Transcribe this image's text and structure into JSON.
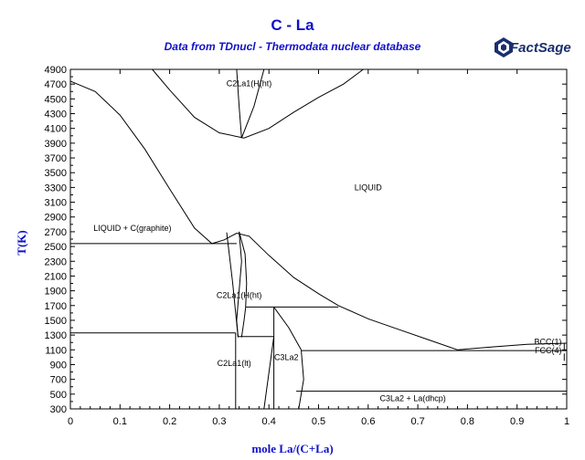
{
  "chart_data": {
    "type": "phase_diagram",
    "title": "C - La",
    "subtitle": "Data from TDnucl - Thermodata nuclear database",
    "logo": "FactSage",
    "xlabel": "mole La/(C+La)",
    "ylabel": "T(K)",
    "xlim": [
      0,
      1
    ],
    "ylim": [
      300,
      4900
    ],
    "x_ticks": [
      "0",
      "0.1",
      "0.2",
      "0.3",
      "0.4",
      "0.5",
      "0.6",
      "0.7",
      "0.8",
      "0.9",
      "1"
    ],
    "x_tick_values": [
      0,
      0.1,
      0.2,
      0.3,
      0.4,
      0.5,
      0.6,
      0.7,
      0.8,
      0.9,
      1
    ],
    "y_ticks": [
      300,
      500,
      700,
      900,
      1100,
      1300,
      1500,
      1700,
      1900,
      2100,
      2300,
      2500,
      2700,
      2900,
      3100,
      3300,
      3500,
      3700,
      3900,
      4100,
      4300,
      4500,
      4700,
      4900
    ],
    "grid": false,
    "regions": [
      {
        "label": "C2La1(H(ht)",
        "x": 0.36,
        "y": 4710
      },
      {
        "label": "LIQUID",
        "x": 0.6,
        "y": 3300
      },
      {
        "label": "LIQUID + C(graphite)",
        "x": 0.125,
        "y": 2750
      },
      {
        "label": "C2La1(H(ht)",
        "x": 0.34,
        "y": 1840
      },
      {
        "label": "C2La1(lt)",
        "x": 0.33,
        "y": 920
      },
      {
        "label": "C3La2",
        "x": 0.435,
        "y": 1000
      },
      {
        "label": "C3La2 + La(dhcp)",
        "x": 0.69,
        "y": 440
      },
      {
        "label": "BCC(1)",
        "x": 0.99,
        "y": 1210
      },
      {
        "label": "FCC(4)",
        "x": 0.99,
        "y": 1090
      }
    ],
    "series": [
      {
        "points": [
          [
            0,
            4740
          ],
          [
            0.05,
            4600
          ],
          [
            0.1,
            4280
          ],
          [
            0.15,
            3820
          ],
          [
            0.2,
            3280
          ],
          [
            0.25,
            2750
          ],
          [
            0.285,
            2540
          ],
          [
            0.31,
            2590
          ],
          [
            0.335,
            2680
          ]
        ]
      },
      {
        "points": [
          [
            0.335,
            2680
          ],
          [
            0.36,
            2640
          ],
          [
            0.4,
            2380
          ],
          [
            0.45,
            2080
          ],
          [
            0.5,
            1860
          ],
          [
            0.54,
            1700
          ],
          [
            0.6,
            1520
          ],
          [
            0.66,
            1380
          ],
          [
            0.72,
            1240
          ],
          [
            0.78,
            1100
          ],
          [
            0.85,
            1140
          ],
          [
            0.92,
            1175
          ],
          [
            1,
            1190
          ]
        ]
      },
      {
        "points": [
          [
            0.165,
            4900
          ],
          [
            0.2,
            4620
          ],
          [
            0.25,
            4250
          ],
          [
            0.3,
            4040
          ],
          [
            0.35,
            3970
          ],
          [
            0.4,
            4100
          ],
          [
            0.45,
            4320
          ],
          [
            0.5,
            4520
          ],
          [
            0.55,
            4700
          ],
          [
            0.59,
            4900
          ]
        ]
      },
      {
        "points": [
          [
            0.335,
            4900
          ],
          [
            0.34,
            4400
          ],
          [
            0.345,
            3970
          ]
        ]
      },
      {
        "points": [
          [
            0.345,
            3970
          ],
          [
            0.37,
            4400
          ],
          [
            0.39,
            4900
          ]
        ]
      },
      {
        "points": [
          [
            0.315,
            2690
          ],
          [
            0.32,
            2400
          ],
          [
            0.327,
            2000
          ],
          [
            0.333,
            1600
          ],
          [
            0.338,
            1270
          ]
        ]
      },
      {
        "points": [
          [
            0.34,
            2700
          ],
          [
            0.352,
            2400
          ],
          [
            0.355,
            2000
          ],
          [
            0.353,
            1670
          ],
          [
            0.35,
            1500
          ],
          [
            0.345,
            1270
          ]
        ]
      },
      {
        "points": [
          [
            0.34,
            2700
          ],
          [
            0.345,
            2300
          ],
          [
            0.34,
            1900
          ],
          [
            0.335,
            1500
          ],
          [
            0.338,
            1270
          ]
        ]
      },
      {
        "points": [
          [
            0,
            2540
          ],
          [
            0.335,
            2540
          ]
        ]
      },
      {
        "points": [
          [
            0.353,
            1680
          ],
          [
            0.54,
            1680
          ]
        ]
      },
      {
        "points": [
          [
            0,
            1330
          ],
          [
            0.333,
            1330
          ]
        ]
      },
      {
        "points": [
          [
            0.338,
            1280
          ],
          [
            0.41,
            1280
          ]
        ]
      },
      {
        "points": [
          [
            0.333,
            1330
          ],
          [
            0.333,
            300
          ]
        ]
      },
      {
        "points": [
          [
            0.41,
            1680
          ],
          [
            0.44,
            1400
          ],
          [
            0.465,
            1100
          ]
        ]
      },
      {
        "points": [
          [
            0.41,
            1680
          ],
          [
            0.41,
            300
          ]
        ]
      },
      {
        "points": [
          [
            0.41,
            1280
          ],
          [
            0.39,
            300
          ]
        ]
      },
      {
        "points": [
          [
            0.465,
            1100
          ],
          [
            0.47,
            700
          ],
          [
            0.46,
            300
          ]
        ]
      },
      {
        "points": [
          [
            0.465,
            1090
          ],
          [
            1,
            1090
          ]
        ]
      },
      {
        "points": [
          [
            0.455,
            540
          ],
          [
            1,
            540
          ]
        ]
      },
      {
        "points": [
          [
            0.995,
            1190
          ],
          [
            0.995,
            1090
          ]
        ]
      },
      {
        "points": [
          [
            0.995,
            1050
          ],
          [
            0.995,
            950
          ]
        ]
      }
    ]
  }
}
